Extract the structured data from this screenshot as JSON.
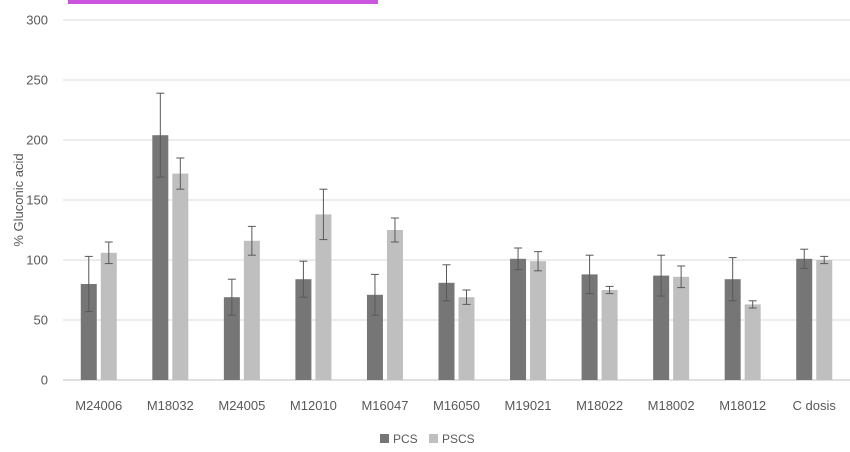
{
  "chart_data": {
    "type": "bar",
    "title": "",
    "xlabel": "",
    "ylabel": "% Gluconic acid",
    "ylim": [
      0,
      300
    ],
    "yticks": [
      "0",
      "50",
      "100",
      "150",
      "200",
      "250",
      "300"
    ],
    "grid": true,
    "legend_position": "bottom",
    "categories": [
      "M24006",
      "M18032",
      "M24005",
      "M12010",
      "M16047",
      "M16050",
      "M19021",
      "M18022",
      "M18002",
      "M18012",
      "C dosis"
    ],
    "series": [
      {
        "name": "PCS",
        "color": "#767676",
        "values": [
          80,
          204,
          69,
          84,
          71,
          81,
          101,
          88,
          87,
          84,
          101
        ],
        "errors": [
          23,
          35,
          15,
          15,
          17,
          15,
          9,
          16,
          17,
          18,
          8
        ]
      },
      {
        "name": "PSCS",
        "color": "#bfbfbf",
        "values": [
          106,
          172,
          116,
          138,
          125,
          69,
          99,
          75,
          86,
          63,
          100
        ],
        "errors": [
          9,
          13,
          12,
          21,
          10,
          6,
          8,
          3,
          9,
          3,
          3
        ]
      }
    ]
  },
  "header_accent_color": "#cc55dd"
}
